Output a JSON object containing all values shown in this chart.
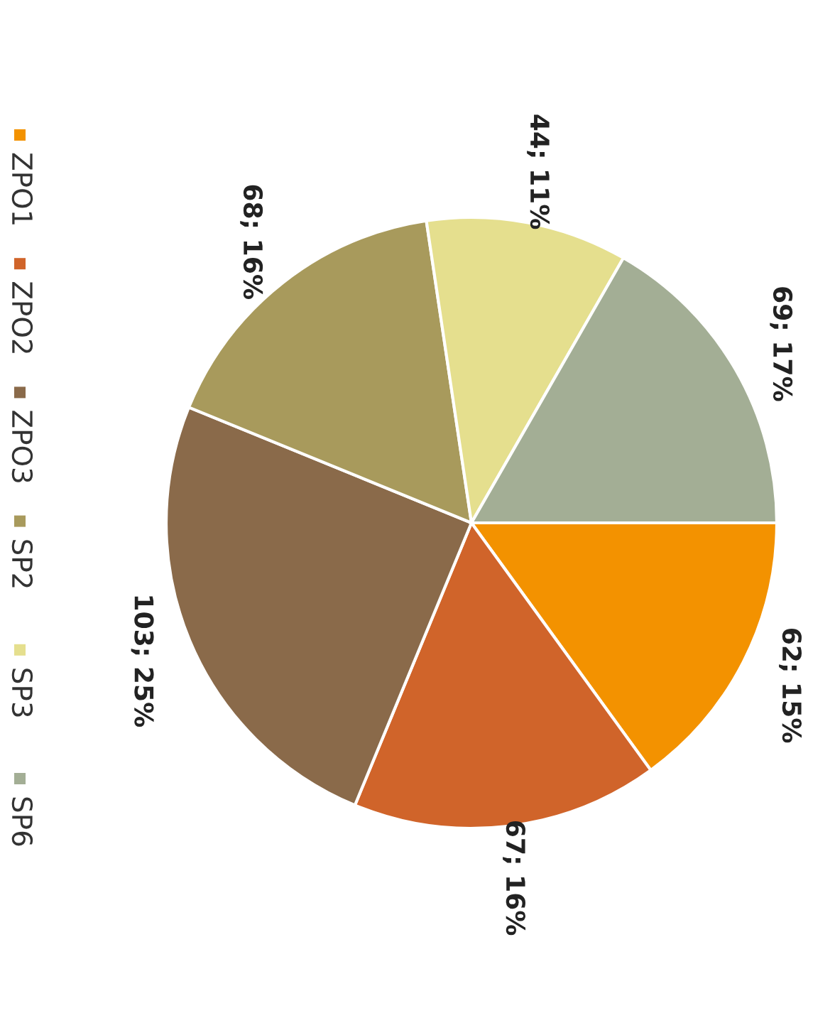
{
  "chart_data": {
    "type": "pie",
    "categories": [
      "ZPO1",
      "ZPO2",
      "ZPO3",
      "SP2",
      "SP3",
      "SP6"
    ],
    "values": [
      62,
      67,
      103,
      68,
      44,
      69
    ],
    "value_labels": [
      "62; 15%",
      "67; 16%",
      "103; 25%",
      "68; 16%",
      "44; 11%",
      "69; 17%"
    ],
    "colors": [
      "#f39200",
      "#d0642a",
      "#8a6a4a",
      "#a89a5c",
      "#e5df8e",
      "#a3ae95"
    ],
    "legend": "left"
  }
}
